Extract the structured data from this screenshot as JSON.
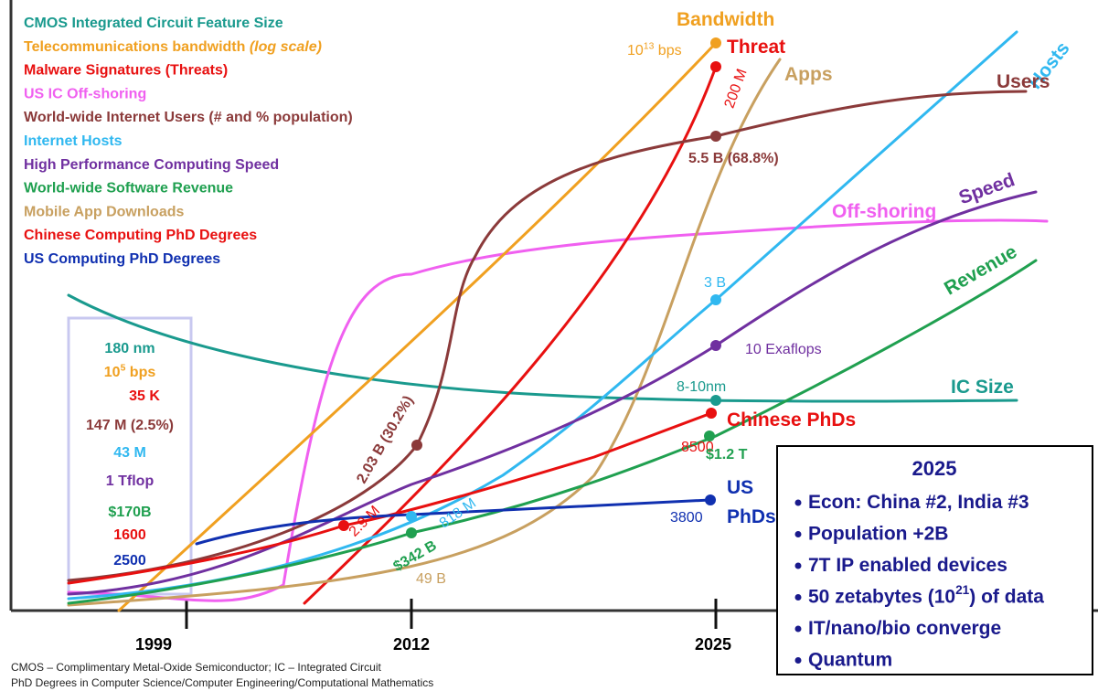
{
  "legend": [
    {
      "text": "CMOS Integrated Circuit Feature Size",
      "color": "#1a9a8e"
    },
    {
      "text": "Telecommunications bandwidth ",
      "note": "(log scale)",
      "color": "#f0a020"
    },
    {
      "text": "Malware Signatures (Threats)",
      "color": "#e81010"
    },
    {
      "text": "US IC Off-shoring",
      "color": "#f060f0"
    },
    {
      "text": "World-wide Internet Users (# and % population)",
      "color": "#8b3a3a"
    },
    {
      "text": "Internet Hosts",
      "color": "#30b8f0"
    },
    {
      "text": "High Performance Computing Speed",
      "color": "#7030a0"
    },
    {
      "text": "World-wide Software Revenue",
      "color": "#20a050"
    },
    {
      "text": "Mobile App Downloads",
      "color": "#c8a060"
    },
    {
      "text": "Chinese Computing PhD Degrees",
      "color": "#e81010"
    },
    {
      "text": "US Computing PhD Degrees",
      "color": "#1030b0"
    }
  ],
  "baseline_values": [
    {
      "text": "180 nm",
      "color": "#1a9a8e"
    },
    {
      "text": "10",
      "sup": "5",
      "after": " bps",
      "color": "#f0a020"
    },
    {
      "text": "35 K",
      "color": "#e81010"
    },
    {
      "text": "147 M (2.5%)",
      "color": "#8b3a3a"
    },
    {
      "text": "43 M",
      "color": "#30b8f0"
    },
    {
      "text": "1 Tflop",
      "color": "#7030a0"
    },
    {
      "text": "$170B",
      "color": "#20a050"
    },
    {
      "text": "1600",
      "color": "#e81010"
    },
    {
      "text": "2500",
      "color": "#1030b0"
    }
  ],
  "curve_labels": [
    {
      "text": "Bandwidth",
      "color": "#f0a020"
    },
    {
      "text": "Threat",
      "color": "#e81010"
    },
    {
      "text": "Apps",
      "color": "#c8a060"
    },
    {
      "text": "Hosts",
      "color": "#30b8f0"
    },
    {
      "text": "Users",
      "color": "#8b3a3a"
    },
    {
      "text": "Speed",
      "color": "#7030a0"
    },
    {
      "text": "Off-shoring",
      "color": "#f060f0"
    },
    {
      "text": "Revenue",
      "color": "#20a050"
    },
    {
      "text": "IC Size",
      "color": "#1a9a8e"
    },
    {
      "text": "Chinese PhDs",
      "color": "#e81010"
    },
    {
      "text": "US",
      "color": "#1030b0"
    },
    {
      "text": "PhDs",
      "color": "#1030b0"
    }
  ],
  "point_labels": [
    {
      "text": "10",
      "sup": "13",
      "after": " bps",
      "color": "#f0a020"
    },
    {
      "text": "200 M",
      "color": "#e81010"
    },
    {
      "text": "5.5 B (68.8%)",
      "color": "#8b3a3a"
    },
    {
      "text": "3 B",
      "color": "#30b8f0"
    },
    {
      "text": "10 Exaflops",
      "color": "#7030a0"
    },
    {
      "text": "8-10nm",
      "color": "#1a9a8e"
    },
    {
      "text": "8500",
      "color": "#e81010"
    },
    {
      "text": "$1.2 T",
      "color": "#20a050"
    },
    {
      "text": "3800",
      "color": "#1030b0"
    },
    {
      "text": "2.03 B (30.2%)",
      "color": "#8b3a3a"
    },
    {
      "text": "2.9 M",
      "color": "#e81010"
    },
    {
      "text": "818 M",
      "color": "#30b8f0"
    },
    {
      "text": "$342 B",
      "color": "#20a050"
    },
    {
      "text": "49 B",
      "color": "#c8a060"
    }
  ],
  "years": [
    "1999",
    "2012",
    "2025"
  ],
  "outlook": {
    "title": "2025",
    "bullets": [
      {
        "text": "Econ: China #2, India #3"
      },
      {
        "text": "Population +2B"
      },
      {
        "text": "7T IP enabled devices"
      },
      {
        "text": "50 zetabytes (10",
        "sup": "21",
        "after": ") of data"
      },
      {
        "text": "IT/nano/bio converge"
      },
      {
        "text": "Quantum"
      }
    ]
  },
  "footnotes": [
    "CMOS – Complimentary Metal-Oxide Semiconductor; IC – Integrated Circuit",
    "PhD Degrees in Computer Science/Computer Engineering/Computational Mathematics"
  ]
}
